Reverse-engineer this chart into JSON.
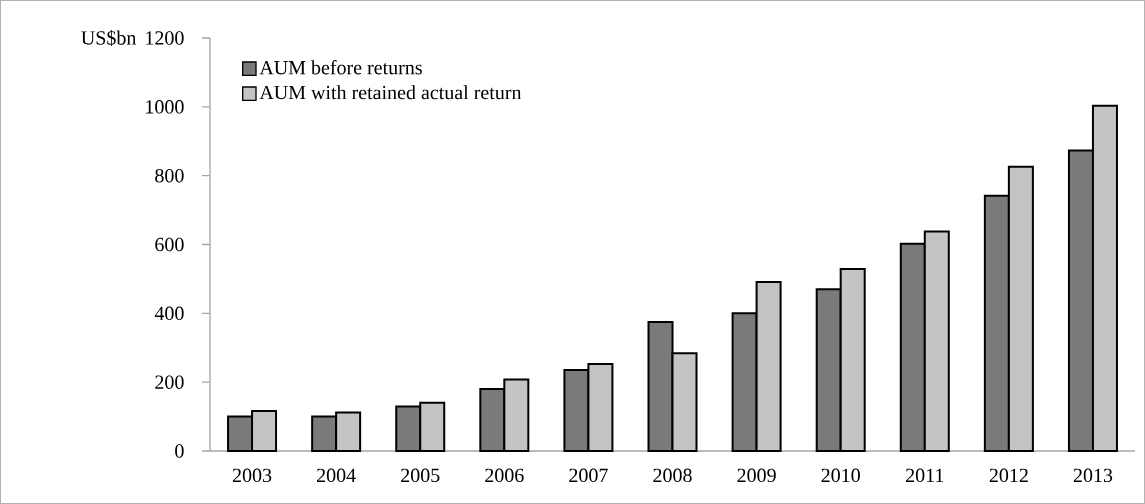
{
  "chart_data": {
    "type": "bar",
    "ylabel": "US$bn",
    "categories": [
      "2003",
      "2004",
      "2005",
      "2006",
      "2007",
      "2008",
      "2009",
      "2010",
      "2011",
      "2012",
      "2013"
    ],
    "series": [
      {
        "name": "AUM before returns",
        "color": "#7a7a7a",
        "values": [
          100,
          100,
          129,
          180,
          235,
          375,
          400,
          470,
          602,
          742,
          873
        ]
      },
      {
        "name": "AUM with retained actual return",
        "color": "#c4c4c4",
        "values": [
          116,
          112,
          140,
          208,
          253,
          284,
          491,
          529,
          638,
          826,
          1003
        ]
      }
    ],
    "ylim": [
      0,
      1200
    ],
    "yticks": [
      0,
      200,
      400,
      600,
      800,
      1000,
      1200
    ],
    "grid": false,
    "legend": "top left"
  }
}
